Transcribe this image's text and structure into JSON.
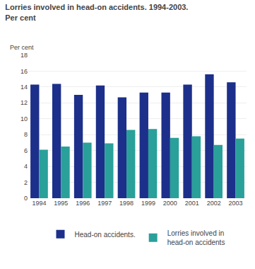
{
  "chart_data": {
    "type": "bar",
    "title": "Lorries involved in head-on accidents. 1994-2003.\nPer cent",
    "ylabel": "Per cent",
    "categories": [
      "1994",
      "1995",
      "1996",
      "1997",
      "1998",
      "1999",
      "2000",
      "2001",
      "2002",
      "2003"
    ],
    "series": [
      {
        "name": "Head-on accidents.",
        "color": "#1c2f8a",
        "values": [
          14.3,
          14.4,
          13.0,
          14.2,
          12.7,
          13.3,
          13.3,
          14.3,
          15.6,
          14.6
        ]
      },
      {
        "name": "Lorries involved in\nhead-on accidents",
        "color": "#2aa09a",
        "values": [
          6.1,
          6.5,
          7.0,
          6.9,
          8.6,
          8.7,
          7.6,
          7.8,
          6.7,
          7.5
        ]
      }
    ],
    "ylim": [
      0,
      18
    ],
    "yticks": [
      0,
      2,
      4,
      6,
      8,
      10,
      12,
      14,
      16,
      18
    ],
    "grid": true,
    "legend": "bottom"
  }
}
